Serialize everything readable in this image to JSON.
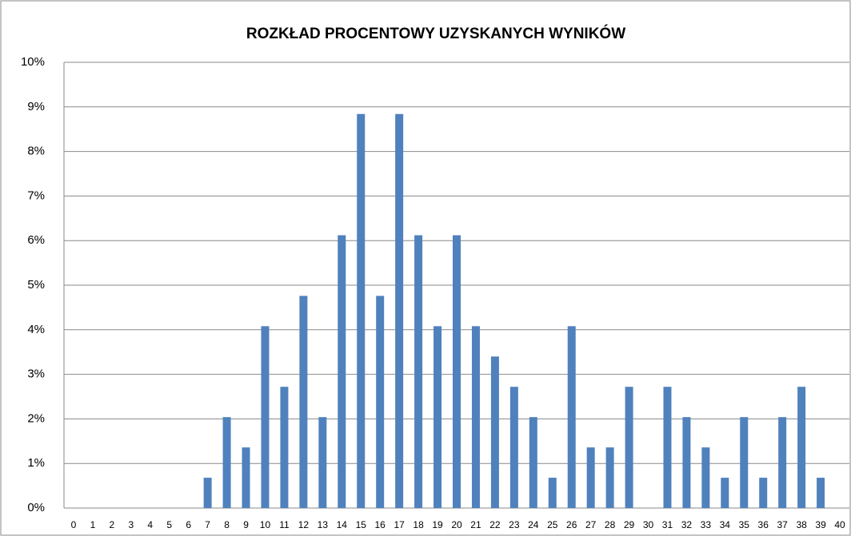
{
  "chart_data": {
    "type": "bar",
    "title": "ROZKŁAD PROCENTOWY UZYSKANYCH WYNIKÓW",
    "categories": [
      "0",
      "1",
      "2",
      "3",
      "4",
      "5",
      "6",
      "7",
      "8",
      "9",
      "10",
      "11",
      "12",
      "13",
      "14",
      "15",
      "16",
      "17",
      "18",
      "19",
      "20",
      "21",
      "22",
      "23",
      "24",
      "25",
      "26",
      "27",
      "28",
      "29",
      "30",
      "31",
      "32",
      "33",
      "34",
      "35",
      "36",
      "37",
      "38",
      "39",
      "40"
    ],
    "values": [
      0,
      0,
      0,
      0,
      0,
      0,
      0,
      0.68,
      2.04,
      1.36,
      4.08,
      2.72,
      4.76,
      2.04,
      6.12,
      8.84,
      4.76,
      8.84,
      6.12,
      4.08,
      6.12,
      4.08,
      3.4,
      2.72,
      2.04,
      0.68,
      4.08,
      1.36,
      1.36,
      2.72,
      0,
      2.72,
      2.04,
      1.36,
      0.68,
      2.04,
      0.68,
      2.04,
      2.72,
      0.68,
      0
    ],
    "color": "#4f81bd",
    "ylim": [
      0,
      10
    ],
    "yticks": [
      {
        "value": 0,
        "label": "0%"
      },
      {
        "value": 1,
        "label": "1%"
      },
      {
        "value": 2,
        "label": "2%"
      },
      {
        "value": 3,
        "label": "3%"
      },
      {
        "value": 4,
        "label": "4%"
      },
      {
        "value": 5,
        "label": "5%"
      },
      {
        "value": 6,
        "label": "6%"
      },
      {
        "value": 7,
        "label": "7%"
      },
      {
        "value": 8,
        "label": "8%"
      },
      {
        "value": 9,
        "label": "9%"
      },
      {
        "value": 10,
        "label": "10%"
      }
    ],
    "grid": true
  }
}
